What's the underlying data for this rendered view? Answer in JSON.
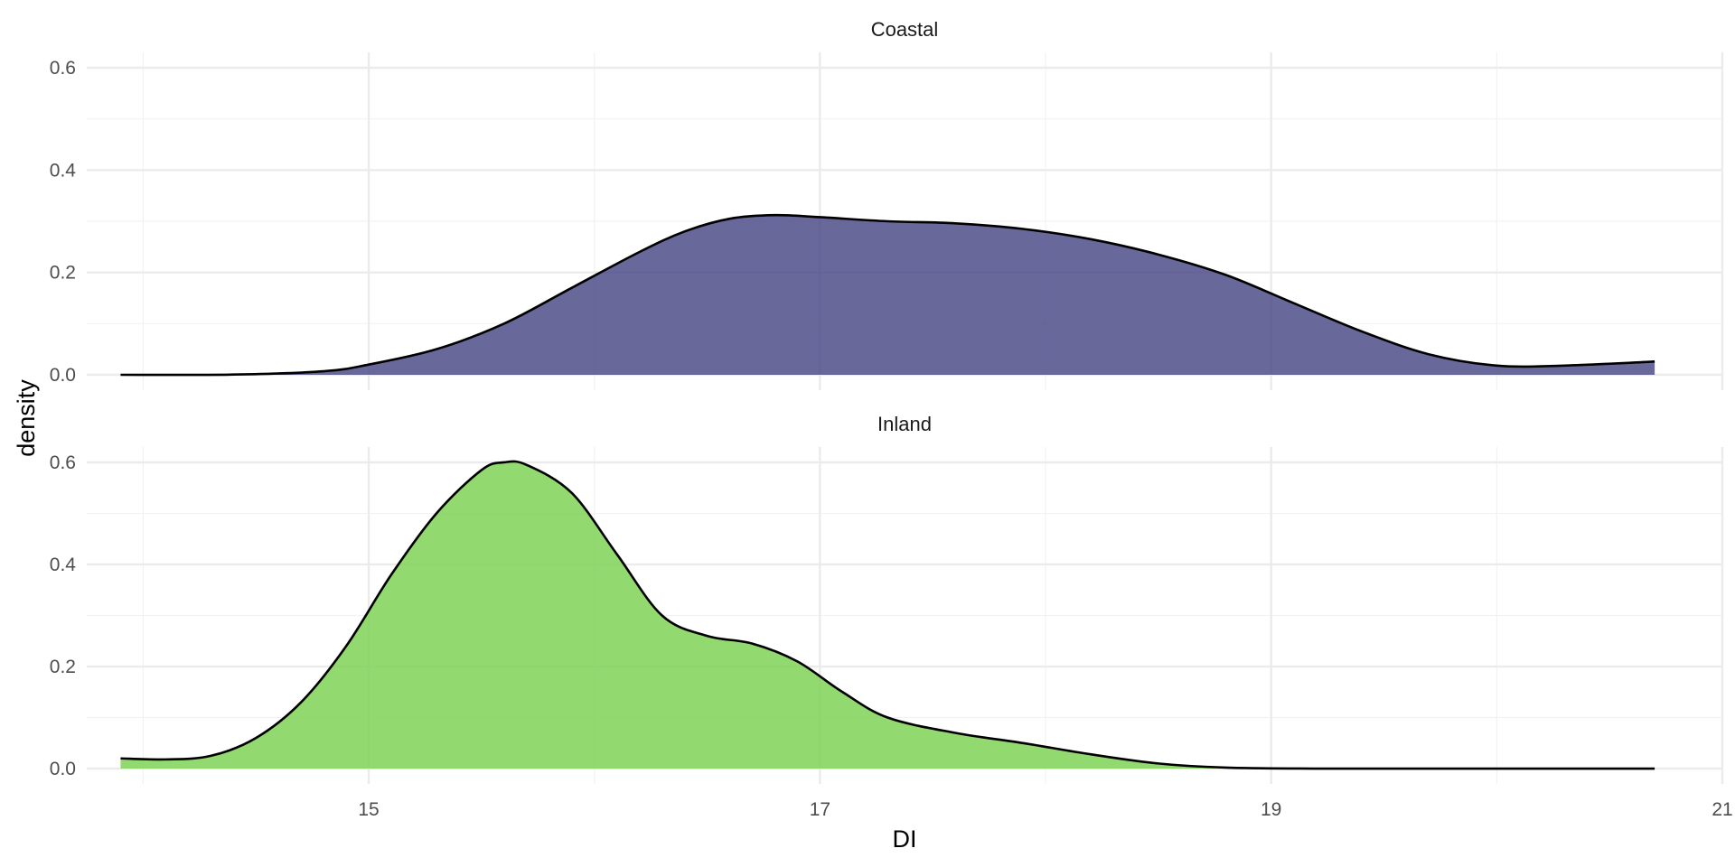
{
  "chart_data": {
    "type": "area",
    "title": "",
    "xlabel": "DI",
    "ylabel": "density",
    "xlim": [
      13.75,
      21.0
    ],
    "ylim": [
      0,
      0.6
    ],
    "x_ticks": [
      15,
      17,
      19,
      21
    ],
    "y_ticks": [
      0.0,
      0.2,
      0.4,
      0.6
    ],
    "y_tick_labels": [
      "0.0",
      "0.2",
      "0.4",
      "0.6"
    ],
    "grid": true,
    "legend": "none",
    "facets": [
      {
        "label": "Coastal",
        "fill_color": "#3f3d7f",
        "fill_opacity": 0.78,
        "x": [
          13.9,
          14.4,
          14.8,
          15.0,
          15.3,
          15.6,
          15.9,
          16.2,
          16.4,
          16.6,
          16.8,
          17.0,
          17.3,
          17.6,
          17.9,
          18.2,
          18.5,
          18.8,
          19.1,
          19.4,
          19.7,
          20.0,
          20.3,
          20.7
        ],
        "y": [
          0.0,
          0.0005,
          0.007,
          0.02,
          0.05,
          0.1,
          0.17,
          0.24,
          0.28,
          0.305,
          0.312,
          0.308,
          0.3,
          0.296,
          0.285,
          0.265,
          0.235,
          0.195,
          0.14,
          0.085,
          0.04,
          0.018,
          0.018,
          0.026
        ]
      },
      {
        "label": "Inland",
        "fill_color": "#7ad151",
        "fill_opacity": 0.82,
        "x": [
          13.9,
          14.1,
          14.3,
          14.5,
          14.7,
          14.9,
          15.1,
          15.3,
          15.5,
          15.6,
          15.7,
          15.9,
          16.1,
          16.3,
          16.5,
          16.7,
          16.9,
          17.1,
          17.3,
          17.6,
          17.9,
          18.2,
          18.5,
          18.8,
          19.2,
          19.6,
          20.0,
          20.7
        ],
        "y": [
          0.02,
          0.018,
          0.025,
          0.06,
          0.13,
          0.24,
          0.38,
          0.5,
          0.585,
          0.6,
          0.595,
          0.54,
          0.42,
          0.3,
          0.26,
          0.245,
          0.21,
          0.15,
          0.1,
          0.07,
          0.05,
          0.028,
          0.01,
          0.002,
          0.0,
          0.0,
          0.0,
          0.0
        ]
      }
    ]
  }
}
